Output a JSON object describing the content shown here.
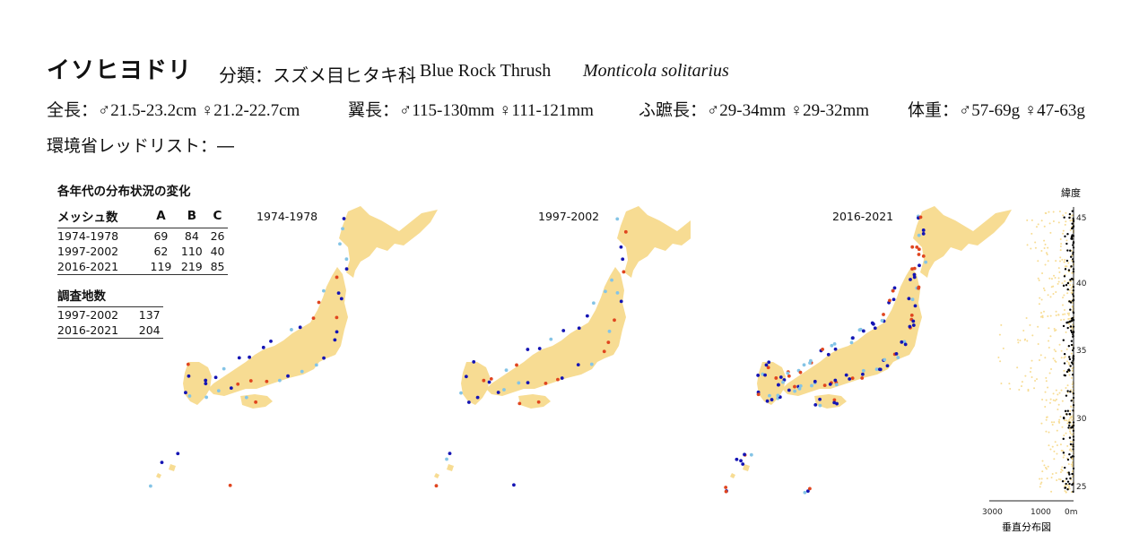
{
  "header": {
    "species_jp": "イソヒヨドリ",
    "classification": "分類：スズメ目ヒタキ科",
    "english_name": "Blue Rock Thrush",
    "latin_name": "Monticola solitarius"
  },
  "measurements": {
    "total_length": "全長：♂21.5-23.2cm ♀21.2-22.7cm",
    "wing_length": "翼長：♂115-130mm ♀111-121mm",
    "tarsus_length": "ふ蹠長：♂29-34mm ♀29-32mm",
    "weight": "体重：♂57-69g ♀47-63g"
  },
  "redlist": "環境省レッドリスト：―",
  "changes": {
    "title": "各年代の分布状況の変化",
    "headers": [
      "メッシュ数",
      "A",
      "B",
      "C"
    ],
    "rows": [
      [
        "1974-1978",
        "69",
        "84",
        "26"
      ],
      [
        "1997-2002",
        "62",
        "110",
        "40"
      ],
      [
        "2016-2021",
        "119",
        "219",
        "85"
      ]
    ]
  },
  "survey": {
    "title": "調査地数",
    "rows": [
      [
        "1997-2002",
        "137"
      ],
      [
        "2016-2021",
        "204"
      ]
    ]
  },
  "maps": [
    {
      "period": "1974-1978"
    },
    {
      "period": "1997-2002"
    },
    {
      "period": "2016-2021"
    }
  ],
  "vertical_chart": {
    "latitude_label": "緯度",
    "latitude_ticks": [
      "45",
      "40",
      "35",
      "30",
      "25"
    ],
    "altitude_ticks": [
      "3000",
      "1000",
      "0m"
    ],
    "caption": "垂直分布図"
  },
  "colors": {
    "land": "#f7dc93",
    "class_a": "#84c4e6",
    "class_b": "#1414b4",
    "class_c": "#e0451f",
    "survey_point": "#000000"
  }
}
